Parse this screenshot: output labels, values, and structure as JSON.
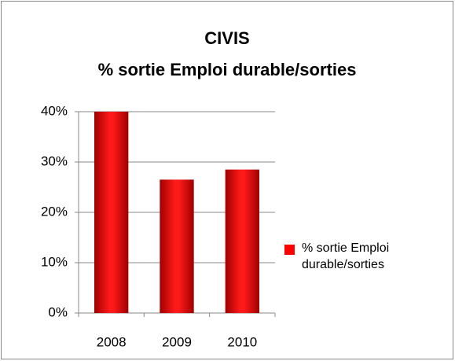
{
  "chart_data": {
    "type": "bar",
    "title": "CIVIS",
    "subtitle": "% sortie Emploi durable/sorties",
    "categories": [
      "2008",
      "2009",
      "2010"
    ],
    "series": [
      {
        "name": "% sortie Emploi durable/sorties",
        "color": "#ff0000",
        "values": [
          40,
          26.5,
          28.5
        ]
      }
    ],
    "ylim": [
      0,
      40
    ],
    "yticks": [
      {
        "value": 0,
        "label": "0%"
      },
      {
        "value": 10,
        "label": "10%"
      },
      {
        "value": 20,
        "label": "20%"
      },
      {
        "value": 30,
        "label": "30%"
      },
      {
        "value": 40,
        "label": "40%"
      }
    ],
    "grid": true,
    "legend": "right"
  }
}
